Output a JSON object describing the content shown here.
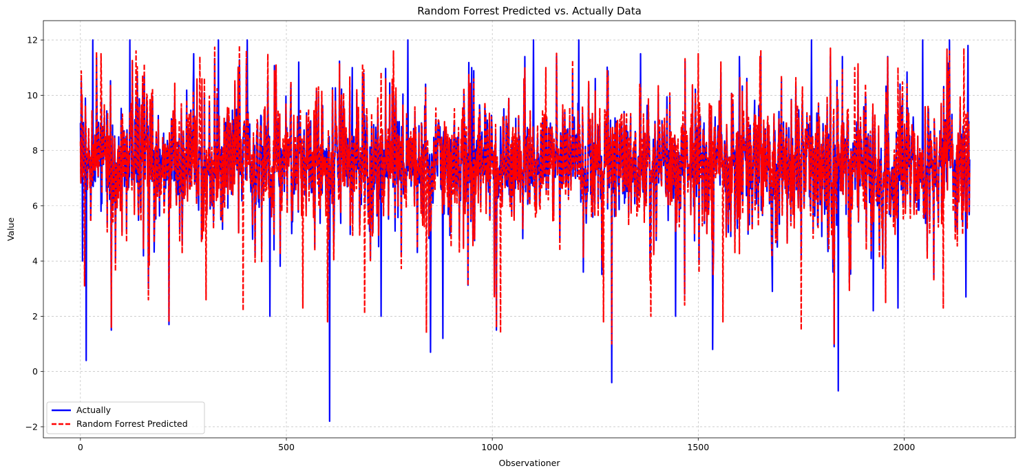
{
  "chart_data": {
    "type": "line",
    "title": "Random Forrest Predicted vs. Actually Data",
    "xlabel": "Observationer",
    "ylabel": "Value",
    "xlim": [
      -90,
      2270
    ],
    "ylim": [
      -2.4,
      12.7
    ],
    "xticks": [
      0,
      500,
      1000,
      1500,
      2000
    ],
    "yticks": [
      -2,
      0,
      2,
      4,
      6,
      8,
      10,
      12
    ],
    "grid": true,
    "legend_position": "lower-left",
    "n_points": 2160,
    "series": [
      {
        "name": "Actually",
        "color": "#0000ff",
        "style": "solid",
        "extremes": [
          {
            "x": 0,
            "y": 9.0
          },
          {
            "x": 5,
            "y": 4.0
          },
          {
            "x": 14,
            "y": 0.4
          },
          {
            "x": 30,
            "y": 12.0
          },
          {
            "x": 75,
            "y": 1.5
          },
          {
            "x": 120,
            "y": 12.0
          },
          {
            "x": 165,
            "y": 3.0
          },
          {
            "x": 215,
            "y": 1.7
          },
          {
            "x": 275,
            "y": 11.5
          },
          {
            "x": 335,
            "y": 12.0
          },
          {
            "x": 405,
            "y": 12.0
          },
          {
            "x": 460,
            "y": 2.0
          },
          {
            "x": 530,
            "y": 11.2
          },
          {
            "x": 605,
            "y": -1.8
          },
          {
            "x": 660,
            "y": 11.0
          },
          {
            "x": 730,
            "y": 2.0
          },
          {
            "x": 795,
            "y": 12.0
          },
          {
            "x": 850,
            "y": 0.7
          },
          {
            "x": 880,
            "y": 1.2
          },
          {
            "x": 950,
            "y": 11.0
          },
          {
            "x": 1010,
            "y": 1.5
          },
          {
            "x": 1100,
            "y": 12.0
          },
          {
            "x": 1210,
            "y": 12.0
          },
          {
            "x": 1290,
            "y": -0.4
          },
          {
            "x": 1360,
            "y": 11.5
          },
          {
            "x": 1445,
            "y": 2.0
          },
          {
            "x": 1535,
            "y": 0.8
          },
          {
            "x": 1600,
            "y": 11.4
          },
          {
            "x": 1680,
            "y": 2.9
          },
          {
            "x": 1775,
            "y": 12.0
          },
          {
            "x": 1830,
            "y": 0.9
          },
          {
            "x": 1840,
            "y": -0.7
          },
          {
            "x": 1925,
            "y": 2.2
          },
          {
            "x": 1985,
            "y": 2.3
          },
          {
            "x": 2045,
            "y": 12.0
          },
          {
            "x": 2110,
            "y": 12.0
          },
          {
            "x": 2150,
            "y": 2.7
          },
          {
            "x": 2155,
            "y": 11.8
          }
        ]
      },
      {
        "name": "Random Forrest Predicted",
        "color": "#ff0000",
        "style": "dashed",
        "extremes": [
          {
            "x": 3,
            "y": 9.4
          },
          {
            "x": 10,
            "y": 3.1
          },
          {
            "x": 50,
            "y": 11.5
          },
          {
            "x": 75,
            "y": 1.6
          },
          {
            "x": 135,
            "y": 11.6
          },
          {
            "x": 165,
            "y": 2.6
          },
          {
            "x": 215,
            "y": 1.8
          },
          {
            "x": 290,
            "y": 11.4
          },
          {
            "x": 305,
            "y": 2.6
          },
          {
            "x": 395,
            "y": 2.2
          },
          {
            "x": 455,
            "y": 11.5
          },
          {
            "x": 540,
            "y": 2.3
          },
          {
            "x": 600,
            "y": 1.8
          },
          {
            "x": 690,
            "y": 2.1
          },
          {
            "x": 760,
            "y": 11.6
          },
          {
            "x": 840,
            "y": 1.4
          },
          {
            "x": 1010,
            "y": 1.6
          },
          {
            "x": 1020,
            "y": 1.4
          },
          {
            "x": 1130,
            "y": 11.0
          },
          {
            "x": 1270,
            "y": 1.8
          },
          {
            "x": 1290,
            "y": 1.0
          },
          {
            "x": 1385,
            "y": 2.0
          },
          {
            "x": 1500,
            "y": 11.5
          },
          {
            "x": 1560,
            "y": 1.8
          },
          {
            "x": 1650,
            "y": 11.4
          },
          {
            "x": 1750,
            "y": 1.5
          },
          {
            "x": 1830,
            "y": 1.0
          },
          {
            "x": 1880,
            "y": 11.0
          },
          {
            "x": 1955,
            "y": 2.5
          },
          {
            "x": 2095,
            "y": 2.3
          },
          {
            "x": 2110,
            "y": 11.6
          },
          {
            "x": 2145,
            "y": 11.7
          }
        ]
      }
    ]
  }
}
